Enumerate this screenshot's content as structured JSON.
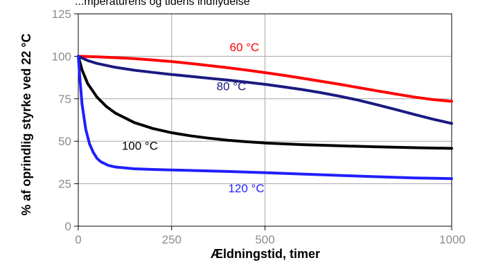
{
  "chart_data": {
    "type": "line",
    "title": "...mperaturens og tidens indflydelse",
    "xlabel": "Ældningstid, timer",
    "ylabel": "% af oprindlig styrke ved 22 °C",
    "xlim": [
      0,
      1000
    ],
    "ylim": [
      0,
      125
    ],
    "xticks": [
      "0",
      "250",
      "500",
      "1000"
    ],
    "yticks": [
      "0",
      "25",
      "50",
      "75",
      "100",
      "125"
    ],
    "grid": true,
    "series": [
      {
        "name": "60 °C",
        "color": "#ff0000",
        "x": [
          0,
          50,
          100,
          150,
          200,
          250,
          300,
          350,
          400,
          450,
          500,
          550,
          600,
          650,
          700,
          750,
          800,
          850,
          900,
          950,
          1000
        ],
        "y": [
          100,
          99.7,
          99.2,
          98.6,
          97.8,
          96.9,
          95.8,
          94.6,
          93.3,
          91.9,
          90.4,
          88.8,
          87.1,
          85.3,
          83.5,
          81.6,
          79.7,
          77.8,
          76,
          74.5,
          73.5
        ]
      },
      {
        "name": "80 °C",
        "color": "#1a1a80",
        "x": [
          0,
          25,
          50,
          100,
          150,
          200,
          250,
          300,
          350,
          400,
          450,
          500,
          550,
          600,
          650,
          700,
          750,
          800,
          850,
          900,
          950,
          1000
        ],
        "y": [
          100,
          97.5,
          95.8,
          93.5,
          91.8,
          90.5,
          89.3,
          88.2,
          87.1,
          86,
          84.8,
          83.5,
          82,
          80.4,
          78.6,
          76.5,
          74.2,
          71.5,
          68.7,
          65.8,
          63,
          60.5
        ]
      },
      {
        "name": "100 °C",
        "color": "#000000",
        "x": [
          0,
          10,
          25,
          50,
          75,
          100,
          150,
          200,
          250,
          300,
          350,
          400,
          450,
          500,
          600,
          700,
          800,
          900,
          1000
        ],
        "y": [
          100,
          92,
          84,
          76,
          70.5,
          66.5,
          61,
          57.5,
          55,
          53.2,
          51.8,
          50.6,
          49.7,
          49,
          48,
          47.3,
          46.7,
          46.2,
          45.8
        ]
      },
      {
        "name": "120 °C",
        "color": "#1f1fff",
        "x": [
          0,
          5,
          10,
          20,
          30,
          40,
          50,
          60,
          80,
          100,
          150,
          200,
          250,
          300,
          400,
          500,
          600,
          700,
          800,
          900,
          1000
        ],
        "y": [
          100,
          85,
          72,
          57,
          48.5,
          43.5,
          40,
          38,
          35.8,
          34.8,
          33.8,
          33.4,
          33.1,
          32.8,
          32.2,
          31.5,
          30.7,
          29.9,
          29.1,
          28.4,
          28
        ]
      }
    ],
    "series_label_pos": [
      {
        "x": 445,
        "y": 103
      },
      {
        "x": 410,
        "y": 80
      },
      {
        "x": 165,
        "y": 45
      },
      {
        "x": 450,
        "y": 20
      }
    ]
  }
}
